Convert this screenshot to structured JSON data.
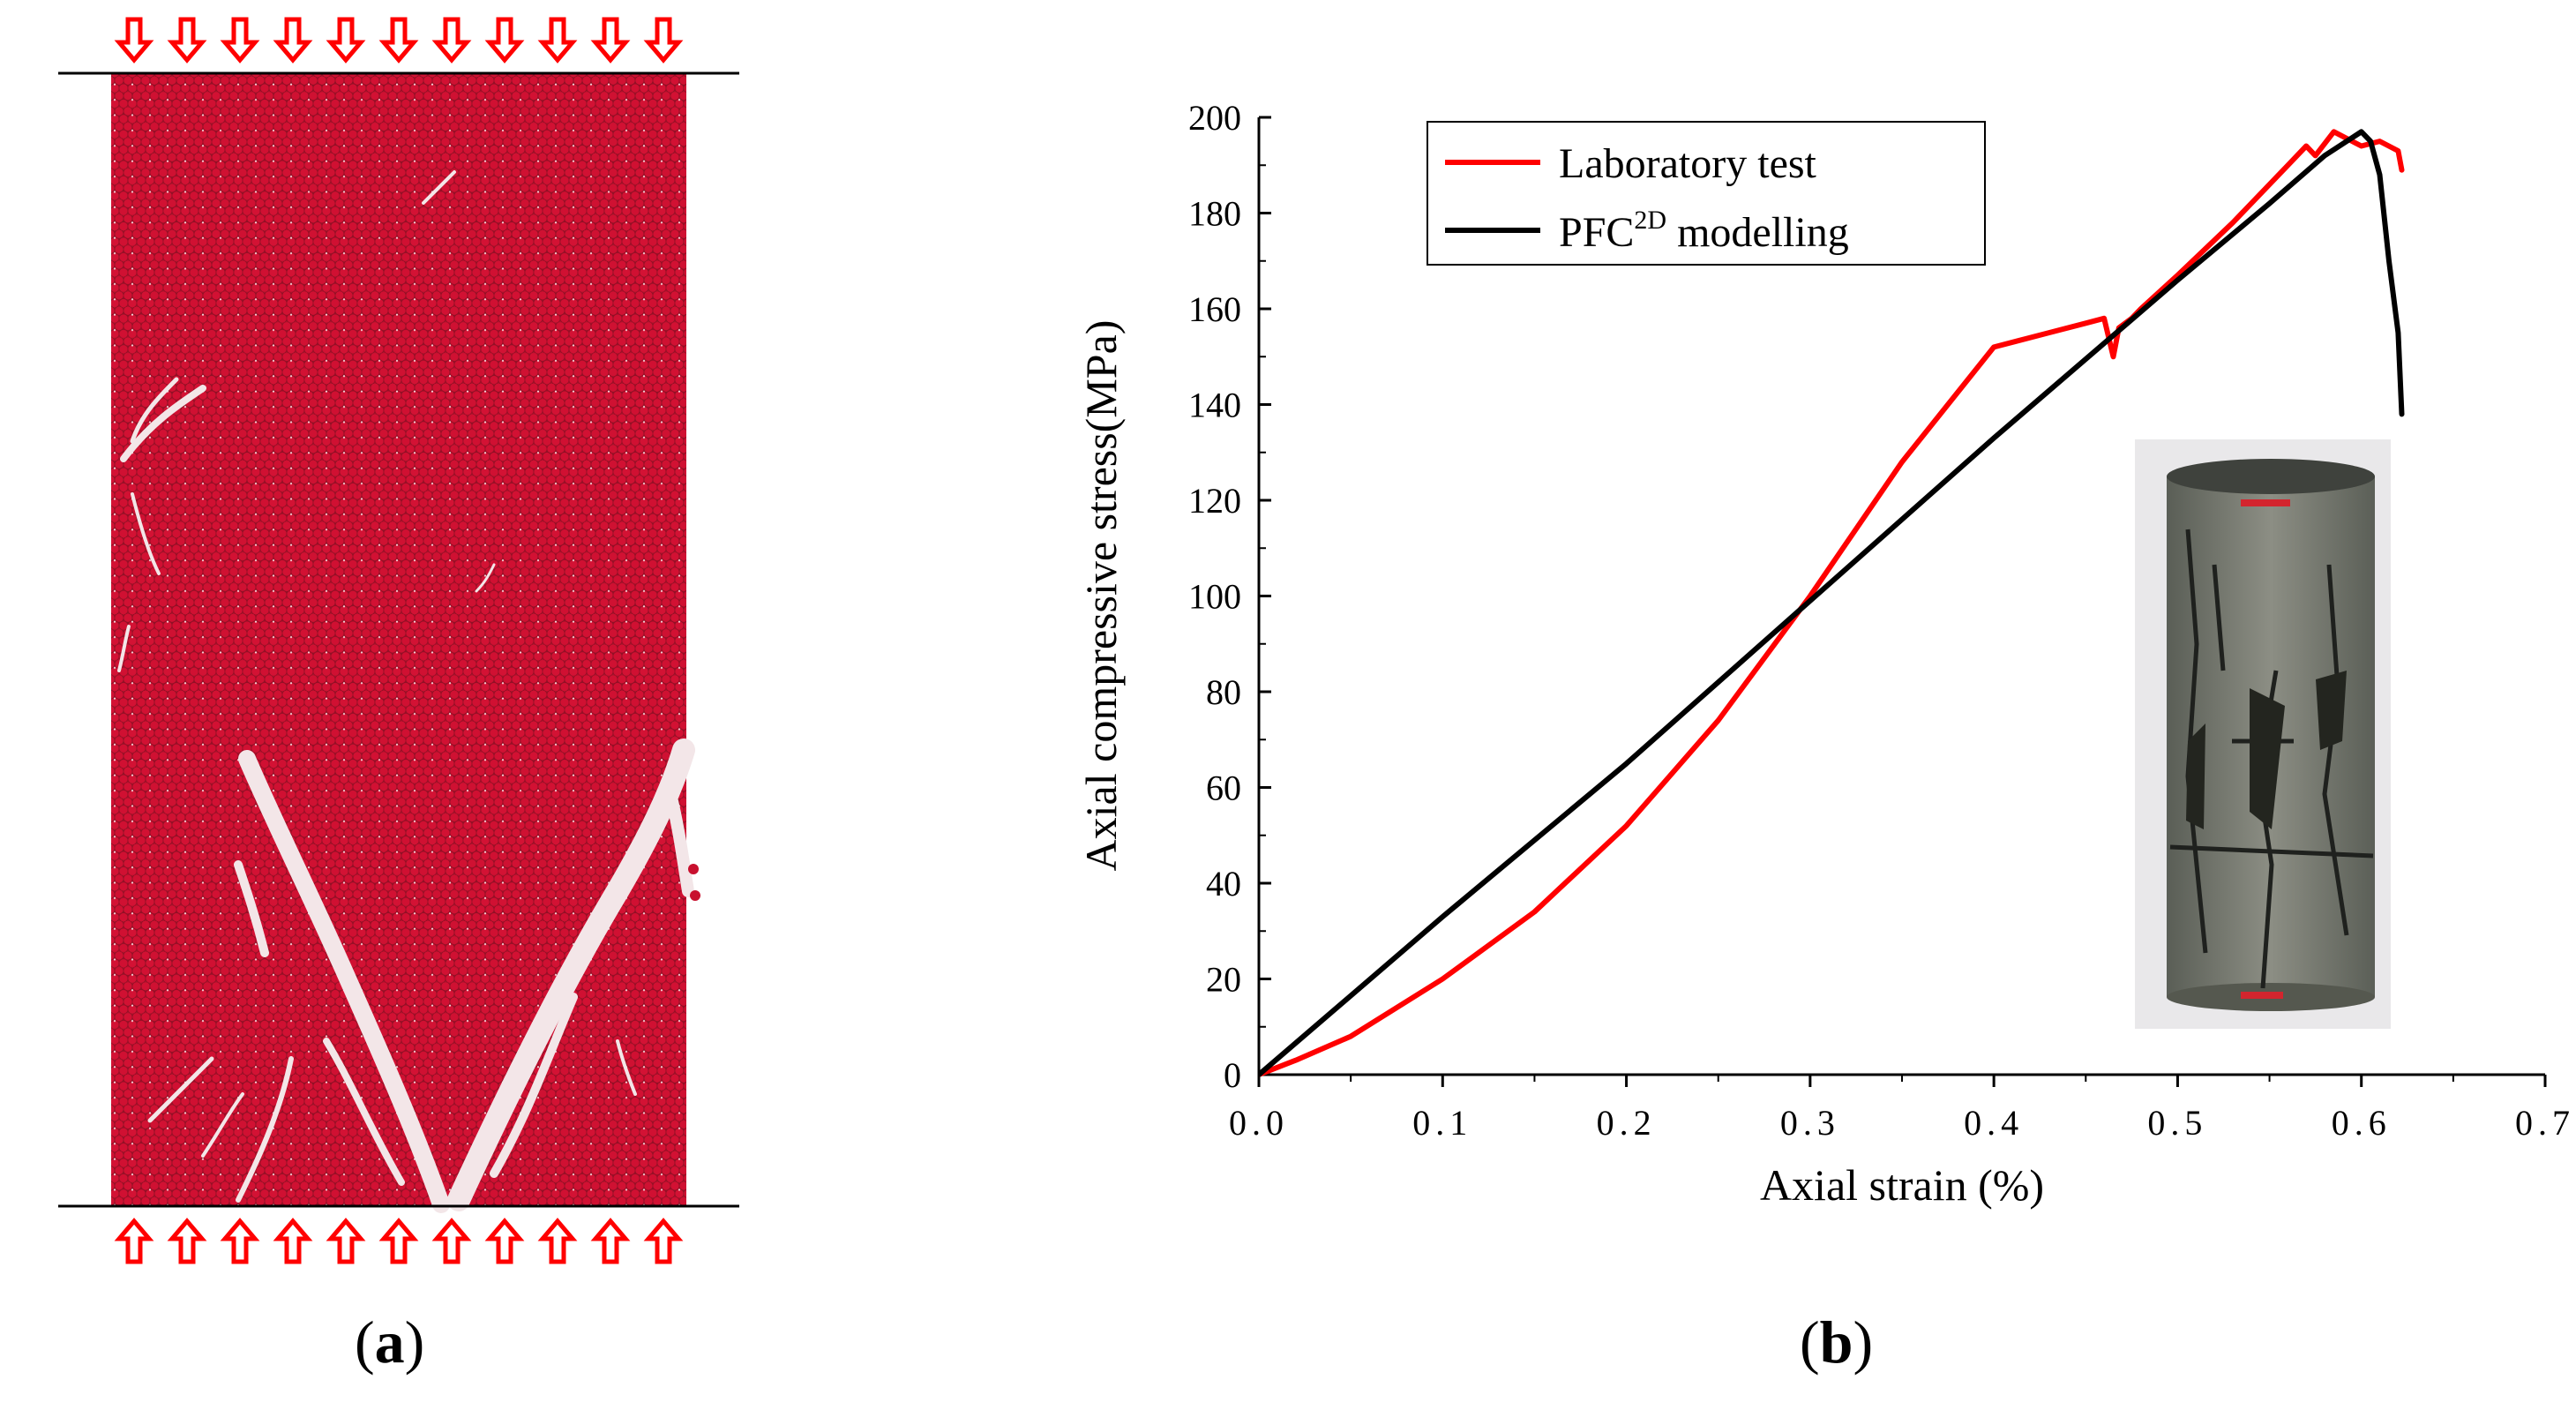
{
  "figure": {
    "panel_a_label": "(a)",
    "panel_a_letter": "a",
    "panel_b_label": "(b)",
    "panel_b_letter": "b",
    "particle_color": "#c8102e",
    "arrow_color": "#ff0000",
    "arrow_count_top": 11,
    "arrow_count_bottom": 11,
    "platen_color": "#000000",
    "inset_description_icon": "cracked-rock-specimen-photo"
  },
  "chart_data": {
    "type": "line",
    "title": "",
    "xlabel": "Axial strain (%)",
    "ylabel": "Axial compressive stress(MPa)",
    "xlim": [
      0.0,
      0.7
    ],
    "ylim": [
      0,
      200
    ],
    "x_ticks": [
      0.0,
      0.1,
      0.2,
      0.3,
      0.4,
      0.5,
      0.6,
      0.7
    ],
    "x_tick_labels": [
      "0.0",
      "0.1",
      "0.2",
      "0.3",
      "0.4",
      "0.5",
      "0.6",
      "0.7"
    ],
    "y_ticks": [
      0,
      20,
      40,
      60,
      80,
      100,
      120,
      140,
      160,
      180,
      200
    ],
    "y_tick_labels": [
      "0",
      "20",
      "40",
      "60",
      "80",
      "100",
      "120",
      "140",
      "160",
      "180",
      "200"
    ],
    "legend_position": "top-left",
    "series": [
      {
        "name": "Laboratory test",
        "color": "#ff0000",
        "x": [
          0.0,
          0.02,
          0.05,
          0.1,
          0.15,
          0.2,
          0.25,
          0.3,
          0.35,
          0.4,
          0.43,
          0.45,
          0.46,
          0.465,
          0.468,
          0.475,
          0.48,
          0.5,
          0.53,
          0.56,
          0.57,
          0.575,
          0.585,
          0.595,
          0.6,
          0.61,
          0.62,
          0.622
        ],
        "y": [
          0,
          3,
          8,
          20,
          34,
          52,
          74,
          100,
          128,
          152,
          155,
          157,
          158,
          150,
          156,
          158,
          160,
          167,
          178,
          190,
          194,
          192,
          197,
          195,
          194,
          195,
          193,
          189
        ]
      },
      {
        "name": "PFC",
        "legend_sup": "2D",
        "legend_suffix": " modelling",
        "color": "#000000",
        "x": [
          0.0,
          0.1,
          0.2,
          0.3,
          0.4,
          0.5,
          0.55,
          0.58,
          0.6,
          0.605,
          0.61,
          0.615,
          0.62,
          0.622
        ],
        "y": [
          0,
          33,
          65,
          99,
          133,
          166,
          182,
          192,
          197,
          195,
          188,
          170,
          155,
          138
        ]
      }
    ]
  }
}
